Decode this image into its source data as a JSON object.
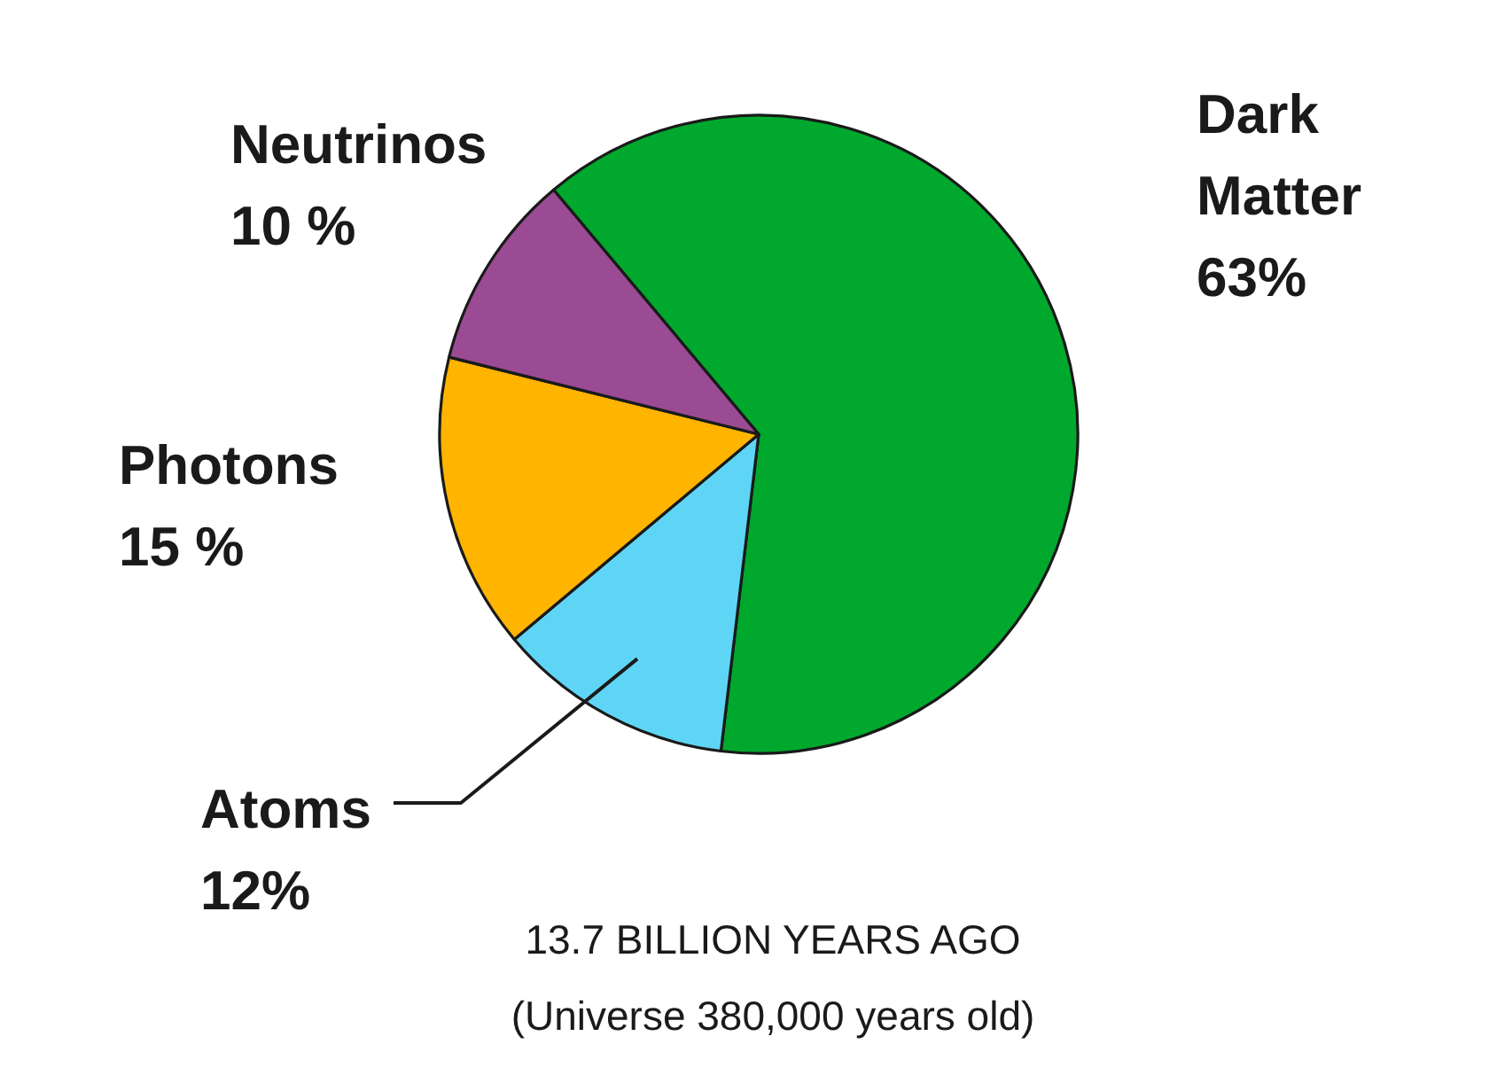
{
  "chart_data": {
    "type": "pie",
    "categories": [
      "Dark Matter",
      "Atoms",
      "Photons",
      "Neutrinos"
    ],
    "values": [
      63,
      12,
      15,
      10
    ],
    "colors": [
      "#00a82d",
      "#5fd5f6",
      "#ffb400",
      "#9a4b93"
    ],
    "value_labels": [
      "63%",
      "12%",
      "15 %",
      "10 %"
    ],
    "annotations": [
      "13.7 BILLION YEARS AGO",
      "(Universe 380,000 years old)"
    ]
  }
}
